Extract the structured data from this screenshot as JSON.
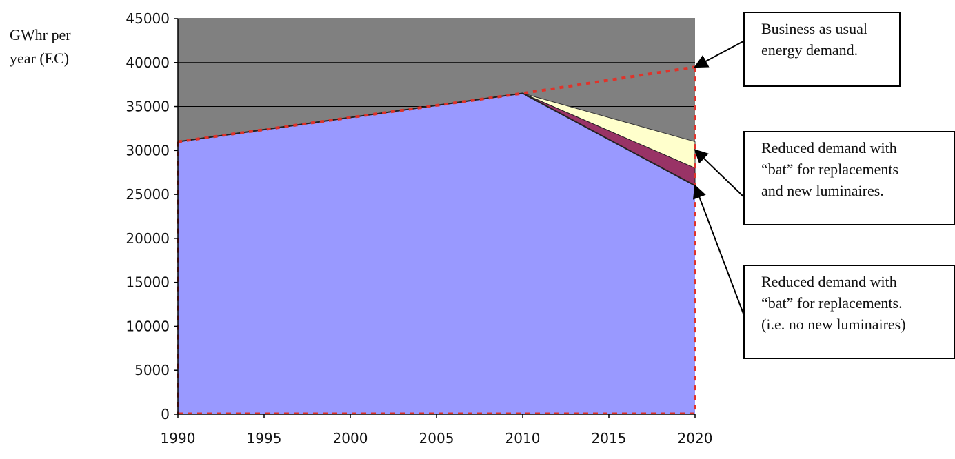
{
  "chart_data": {
    "type": "area",
    "ylabel_lines": [
      "GWhr per",
      "year (EC)"
    ],
    "ylim": [
      0,
      45000
    ],
    "yticks": [
      0,
      5000,
      10000,
      15000,
      20000,
      25000,
      30000,
      35000,
      40000,
      45000
    ],
    "xlim": [
      1990,
      2020
    ],
    "xticks": [
      1990,
      1995,
      2000,
      2005,
      2010,
      2015,
      2020
    ],
    "grid": true,
    "colors": {
      "background": "#808080",
      "blue": "#9999ff",
      "cream": "#ffffcc",
      "maroon": "#993366",
      "bau": "#e0332a",
      "gridline": "#000000"
    },
    "series": [
      {
        "name": "Business as usual energy demand.",
        "x": [
          1990,
          2010,
          2020
        ],
        "y": [
          31000,
          36500,
          39500
        ],
        "style": "dotted-line"
      },
      {
        "name": "Reduced demand with “bat” for replacements and new luminaires.",
        "x": [
          1990,
          2010,
          2020
        ],
        "y": [
          31000,
          36500,
          26000
        ],
        "style": "area"
      },
      {
        "name": "Reduced demand with “bat” for replacements. (i.e. no new luminaires)",
        "x": [
          2010,
          2020
        ],
        "y": [
          36500,
          28000
        ],
        "style": "band-top"
      },
      {
        "x": [
          2010,
          2020
        ],
        "y": [
          36500,
          31000
        ],
        "style": "band-top"
      }
    ],
    "callouts": [
      {
        "lines": [
          "Business as usual",
          "energy demand."
        ]
      },
      {
        "lines": [
          "Reduced demand with",
          "“bat” for replacements",
          "and new luminaires."
        ]
      },
      {
        "lines": [
          "Reduced demand with",
          "“bat” for replacements.",
          "(i.e. no new luminaires)"
        ]
      }
    ]
  }
}
